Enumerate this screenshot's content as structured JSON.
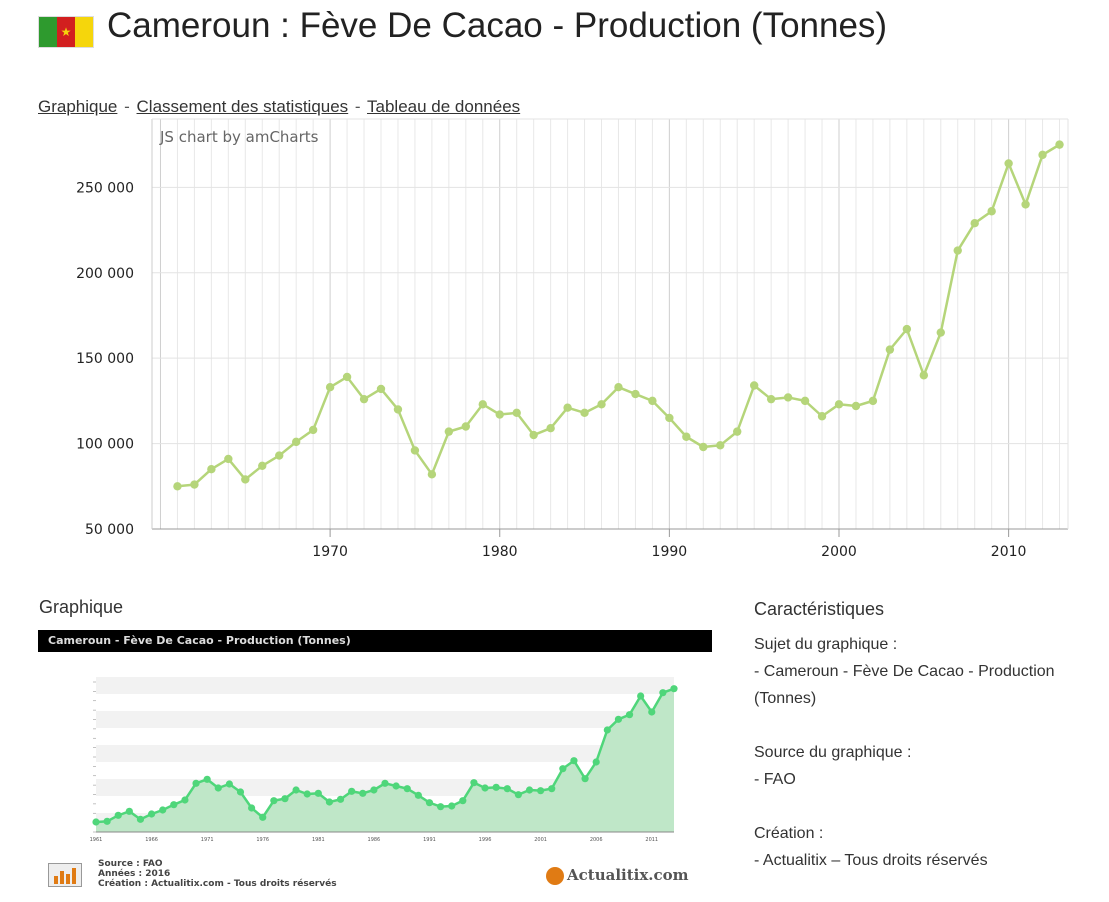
{
  "page": {
    "title": "Cameroun : Fève De Cacao - Production (Tonnes)",
    "flag_icon": "cameroon-flag-icon",
    "links": [
      "Graphique",
      "Classement des statistiques",
      "Tableau de données"
    ],
    "link_separator": "-"
  },
  "chart_credit": "JS chart by amCharts",
  "chart_data": [
    {
      "type": "line",
      "title": "",
      "xlabel": "",
      "ylabel": "",
      "x_ticks": [
        1970,
        1980,
        1990,
        2000,
        2010
      ],
      "y_ticks": [
        "50 000",
        "100 000",
        "150 000",
        "200 000",
        "250 000"
      ],
      "xlim": [
        1959.5,
        2013.5
      ],
      "ylim": [
        50000,
        290000
      ],
      "grid": true,
      "line_color": "#b5d57a",
      "series": [
        {
          "x": [
            1961,
            1962,
            1963,
            1964,
            1965,
            1966,
            1967,
            1968,
            1969,
            1970,
            1971,
            1972,
            1973,
            1974,
            1975,
            1976,
            1977,
            1978,
            1979,
            1980,
            1981,
            1982,
            1983,
            1984,
            1985,
            1986,
            1987,
            1988,
            1989,
            1990,
            1991,
            1992,
            1993,
            1994,
            1995,
            1996,
            1997,
            1998,
            1999,
            2000,
            2001,
            2002,
            2003,
            2004,
            2005,
            2006,
            2007,
            2008,
            2009,
            2010,
            2011,
            2012,
            2013
          ],
          "values": [
            75000,
            76000,
            85000,
            91000,
            79000,
            87000,
            93000,
            101000,
            108000,
            133000,
            139000,
            126000,
            132000,
            120000,
            96000,
            82000,
            107000,
            110000,
            123000,
            117000,
            118000,
            105000,
            109000,
            121000,
            118000,
            123000,
            133000,
            129000,
            125000,
            115000,
            104000,
            98000,
            99000,
            107000,
            134000,
            126000,
            127000,
            125000,
            116000,
            123000,
            122000,
            125000,
            155000,
            167000,
            140000,
            165000,
            213000,
            229000,
            236000,
            264000,
            240000,
            269000,
            275000
          ]
        }
      ]
    },
    {
      "type": "area",
      "title": "Cameroun - Fève De Cacao - Production (Tonnes)",
      "x_ticks": [
        "1961",
        "1966",
        "1971",
        "1976",
        "1981",
        "1986",
        "1991",
        "1996",
        "2001",
        "2006",
        "2011"
      ],
      "line_color": "#4fd67a",
      "fill_color": "#bfe7c8",
      "series": [
        {
          "x": [
            1961,
            1962,
            1963,
            1964,
            1965,
            1966,
            1967,
            1968,
            1969,
            1970,
            1971,
            1972,
            1973,
            1974,
            1975,
            1976,
            1977,
            1978,
            1979,
            1980,
            1981,
            1982,
            1983,
            1984,
            1985,
            1986,
            1987,
            1988,
            1989,
            1990,
            1991,
            1992,
            1993,
            1994,
            1995,
            1996,
            1997,
            1998,
            1999,
            2000,
            2001,
            2002,
            2003,
            2004,
            2005,
            2006,
            2007,
            2008,
            2009,
            2010,
            2011,
            2012,
            2013
          ],
          "values": [
            75000,
            76000,
            85000,
            91000,
            79000,
            87000,
            93000,
            101000,
            108000,
            133000,
            139000,
            126000,
            132000,
            120000,
            96000,
            82000,
            107000,
            110000,
            123000,
            117000,
            118000,
            105000,
            109000,
            121000,
            118000,
            123000,
            133000,
            129000,
            125000,
            115000,
            104000,
            98000,
            99000,
            107000,
            134000,
            126000,
            127000,
            125000,
            116000,
            123000,
            122000,
            125000,
            155000,
            167000,
            140000,
            165000,
            213000,
            229000,
            236000,
            264000,
            240000,
            269000,
            275000
          ]
        }
      ],
      "footer": [
        "Source : FAO",
        "Années : 2016",
        "Création : Actualitix.com - Tous droits réservés"
      ]
    }
  ],
  "thumbnail": {
    "heading": "Graphique",
    "logo_text": "Actualitix.com",
    "chart_icon": "bar-chart-icon"
  },
  "features": {
    "heading": "Caractéristiques",
    "subject_label": "Sujet du graphique :",
    "subject_value": "- Cameroun - Fève De Cacao - Production (Tonnes)",
    "source_label": "Source du graphique :",
    "source_value": "- FAO",
    "creation_label": "Création :",
    "creation_value": "- Actualitix – Tous droits réservés"
  }
}
